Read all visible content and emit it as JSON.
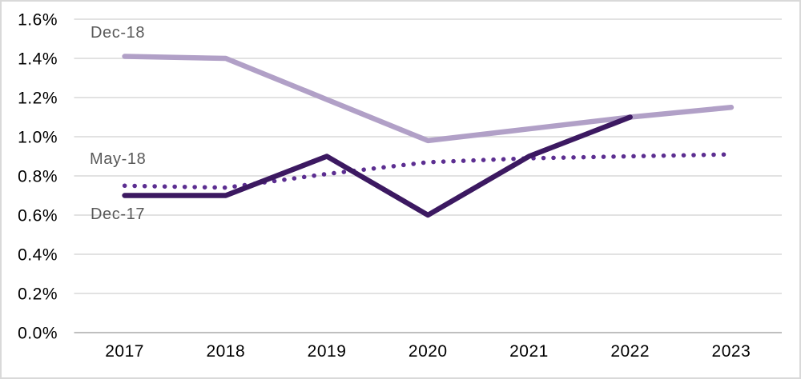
{
  "chart_data": {
    "type": "line",
    "title": "",
    "xlabel": "",
    "ylabel": "",
    "categories": [
      "2017",
      "2018",
      "2019",
      "2020",
      "2021",
      "2022",
      "2023"
    ],
    "series": [
      {
        "name": "Dec-18",
        "style": "solid",
        "color": "#b1a0c7",
        "values": [
          1.41,
          1.4,
          1.19,
          0.98,
          1.04,
          1.1,
          1.15
        ]
      },
      {
        "name": "May-18",
        "style": "dotted",
        "color": "#5c2e91",
        "values": [
          0.75,
          0.74,
          0.81,
          0.87,
          0.89,
          0.9,
          0.91
        ]
      },
      {
        "name": "Dec-17",
        "style": "solid",
        "color": "#3c1961",
        "values": [
          0.7,
          0.7,
          0.9,
          0.6,
          0.9,
          1.1,
          null
        ]
      }
    ],
    "y_ticks": [
      "0.0%",
      "0.2%",
      "0.4%",
      "0.6%",
      "0.8%",
      "1.0%",
      "1.2%",
      "1.4%",
      "1.6%"
    ],
    "y_tick_values": [
      0,
      0.2,
      0.4,
      0.6,
      0.8,
      1.0,
      1.2,
      1.4,
      1.6
    ],
    "ylim": [
      0,
      1.6
    ],
    "grid": true,
    "legend_position": "inline-labels",
    "colors": {
      "grid": "#d9d9d9",
      "axis": "#bfbfbf",
      "border": "#d9d9d9",
      "tick_text": "#000000",
      "label_text": "#595959"
    }
  }
}
